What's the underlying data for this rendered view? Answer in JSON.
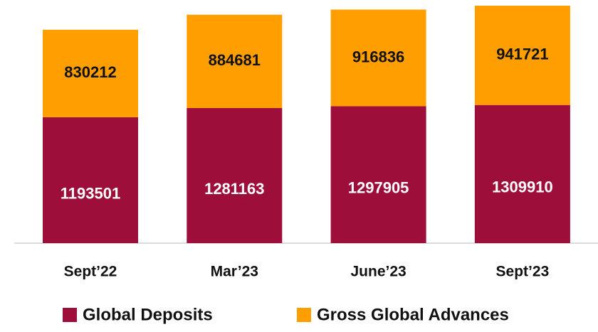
{
  "chart_data": {
    "type": "stacked_bar",
    "categories": [
      "Sept’22",
      "Mar’23",
      "June’23",
      "Sept’23"
    ],
    "series": [
      {
        "name": "Global Deposits",
        "color": "#9e0e3a",
        "values": [
          1193501,
          1281163,
          1297905,
          1309910
        ]
      },
      {
        "name": "Gross Global Advances",
        "color": "#ff9e00",
        "values": [
          830212,
          884681,
          916836,
          941721
        ]
      }
    ]
  }
}
